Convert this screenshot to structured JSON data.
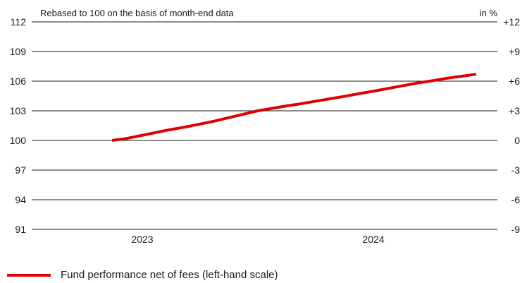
{
  "chart_data": {
    "type": "line",
    "subtitle": "Rebased to 100 on the basis of month-end data",
    "right_axis_unit": "in %",
    "x_tick_labels": [
      "2023",
      "2024"
    ],
    "left_ylim": [
      91,
      112
    ],
    "left_ticks": [
      "112",
      "109",
      "106",
      "103",
      "100",
      "97",
      "94",
      "91"
    ],
    "right_ticks": [
      "+12",
      "+9",
      "+6",
      "+3",
      "0",
      "-3",
      "-6",
      "-9"
    ],
    "grid": "horizontal",
    "legend_position": "bottom-left",
    "series": [
      {
        "name": "Fund performance net of fees (left-hand scale)",
        "color": "#e00000",
        "x": [
          "2022-11",
          "2022-12",
          "2023-01",
          "2023-02",
          "2023-03",
          "2023-04",
          "2023-05",
          "2023-06",
          "2023-07",
          "2023-08",
          "2023-09",
          "2023-10",
          "2023-11",
          "2023-12",
          "2024-01",
          "2024-02",
          "2024-03",
          "2024-04",
          "2024-05",
          "2024-06",
          "2024-07",
          "2024-08",
          "2024-09",
          "2024-10",
          "2024-11",
          "2024-12"
        ],
        "values": [
          100.0,
          100.2,
          100.5,
          100.8,
          101.1,
          101.35,
          101.65,
          101.95,
          102.3,
          102.65,
          103.0,
          103.25,
          103.5,
          103.72,
          103.98,
          104.22,
          104.48,
          104.75,
          105.0,
          105.28,
          105.55,
          105.82,
          106.05,
          106.3,
          106.5,
          106.7
        ]
      }
    ]
  }
}
